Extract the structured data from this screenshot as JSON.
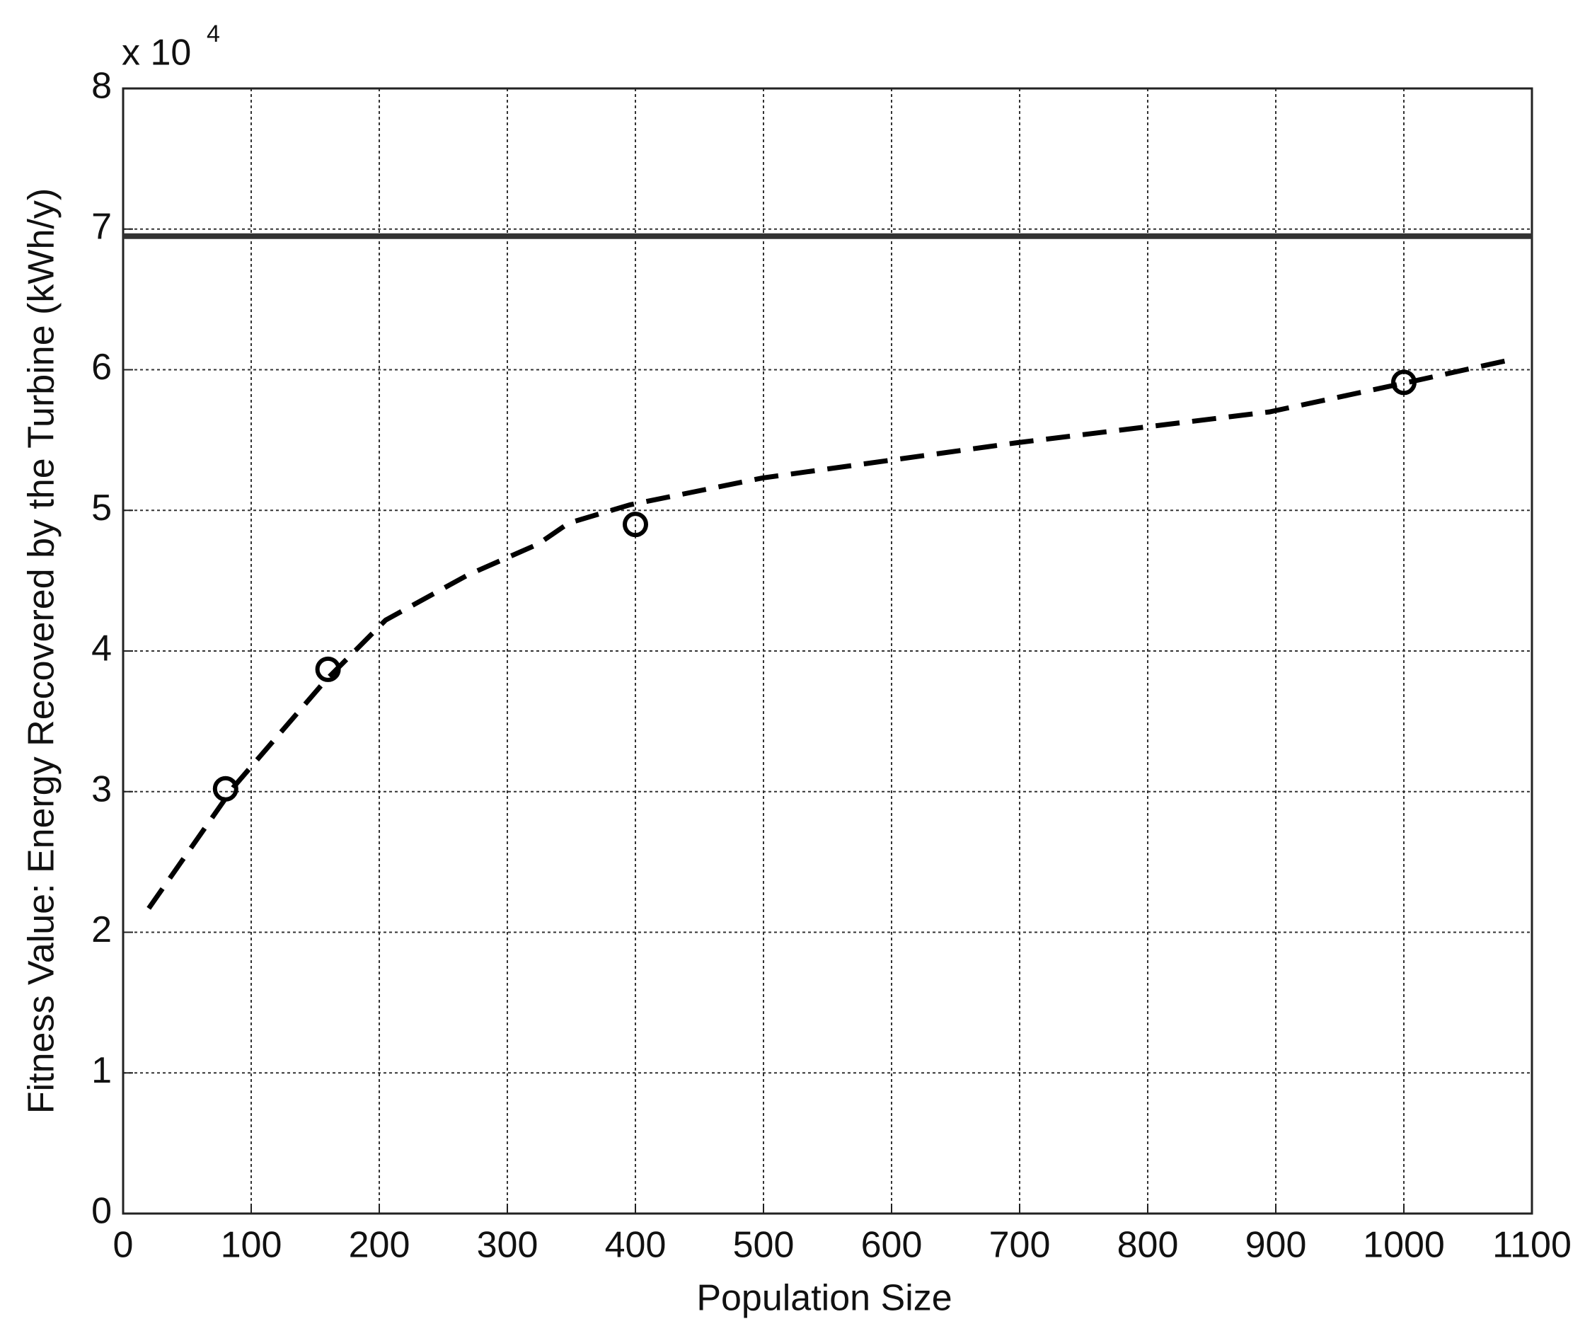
{
  "chart_data": {
    "type": "scatter",
    "xlabel": "Population Size",
    "ylabel": "Fitness Value: Energy Recovered by the Turbine (kWh/y)",
    "y_multiplier": {
      "base": "x 10",
      "exponent": "4"
    },
    "xlim": [
      0,
      1100
    ],
    "xticks": [
      0,
      100,
      200,
      300,
      400,
      500,
      600,
      700,
      800,
      900,
      1000,
      1100
    ],
    "ylim": [
      0,
      8
    ],
    "yticks": [
      0,
      1,
      2,
      3,
      4,
      5,
      6,
      7,
      8
    ],
    "grid": true,
    "series": [
      {
        "style": "solid",
        "color": "#333333",
        "x": [
          0,
          1100
        ],
        "values": [
          6.95,
          6.95
        ]
      },
      {
        "style": "dashed",
        "color": "#000000",
        "x": [
          20,
          86,
          158,
          205,
          269,
          324,
          348,
          396,
          499,
          697,
          895,
          998,
          1088
        ],
        "values": [
          2.17,
          3.03,
          3.79,
          4.22,
          4.54,
          4.76,
          4.91,
          5.04,
          5.23,
          5.48,
          5.7,
          5.9,
          6.08
        ]
      },
      {
        "style": "markers",
        "color": "#000000",
        "x": [
          80,
          160,
          400,
          1000
        ],
        "values": [
          3.02,
          3.87,
          4.9,
          5.91
        ]
      }
    ]
  }
}
